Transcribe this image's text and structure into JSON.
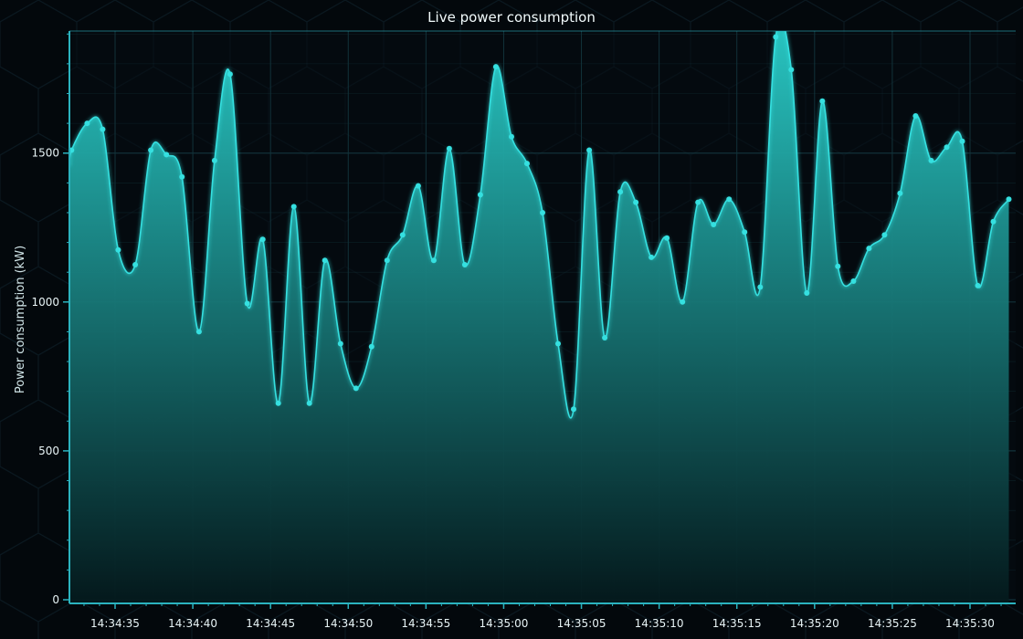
{
  "chart_data": {
    "type": "area",
    "title": "Live power consumption",
    "xlabel": "",
    "ylabel": "Power consumption (kW)",
    "ylim": [
      0,
      1910
    ],
    "y_ticks": [
      0,
      500,
      1000,
      1500
    ],
    "x_ticks": [
      "14:34:35",
      "14:34:40",
      "14:34:45",
      "14:34:50",
      "14:34:55",
      "14:35:00",
      "14:35:05",
      "14:35:10",
      "14:35:15",
      "14:35:20",
      "14:35:25",
      "14:35:30"
    ],
    "grid": true,
    "colors": {
      "background": "#03080c",
      "line": "#35e0e0",
      "fill_top": "#2ad0cc",
      "fill_bottom": "#04191c",
      "grid": "#12323a",
      "axis": "#2bb3bf"
    },
    "series": [
      {
        "x": [
          "14:34:32.2",
          "14:34:33.2",
          "14:34:34.2",
          "14:34:35.2",
          "14:34:36.3",
          "14:34:37.3",
          "14:34:38.3",
          "14:34:39.3",
          "14:34:40.4",
          "14:34:41.4",
          "14:34:42.4",
          "14:34:43.5",
          "14:34:44.5",
          "14:34:45.5",
          "14:34:46.5",
          "14:34:47.5",
          "14:34:48.5",
          "14:34:49.5",
          "14:34:50.5",
          "14:34:51.5",
          "14:34:52.5",
          "14:34:53.5",
          "14:34:54.5",
          "14:34:55.5",
          "14:34:56.5",
          "14:34:57.5",
          "14:34:58.5",
          "14:34:59.5",
          "14:35:00.5",
          "14:35:01.5",
          "14:35:02.5",
          "14:35:03.5",
          "14:35:04.5",
          "14:35:05.5",
          "14:35:06.5",
          "14:35:07.5",
          "14:35:08.5",
          "14:35:09.5",
          "14:35:10.5",
          "14:35:11.5",
          "14:35:12.5",
          "14:35:13.5",
          "14:35:14.5",
          "14:35:15.5",
          "14:35:16.5",
          "14:35:17.5",
          "14:35:18.5",
          "14:35:19.5",
          "14:35:20.5",
          "14:35:21.5",
          "14:35:22.5",
          "14:35:23.5",
          "14:35:24.5",
          "14:35:25.5",
          "14:35:26.5",
          "14:35:27.5",
          "14:35:28.5",
          "14:35:29.5",
          "14:35:30.5",
          "14:35:31.5",
          "14:35:32.5"
        ],
        "values": [
          1510,
          1600,
          1580,
          1175,
          1125,
          1510,
          1495,
          1420,
          900,
          1475,
          1765,
          995,
          1210,
          660,
          1320,
          660,
          1140,
          860,
          710,
          850,
          1140,
          1225,
          1390,
          1140,
          1515,
          1125,
          1360,
          1790,
          1555,
          1465,
          1300,
          860,
          640,
          1510,
          880,
          1370,
          1335,
          1150,
          1215,
          1000,
          1335,
          1260,
          1345,
          1235,
          1050,
          1890,
          1780,
          1030,
          1675,
          1120,
          1070,
          1180,
          1225,
          1365,
          1625,
          1475,
          1520,
          1540,
          1055,
          1270,
          1345
        ]
      }
    ]
  }
}
